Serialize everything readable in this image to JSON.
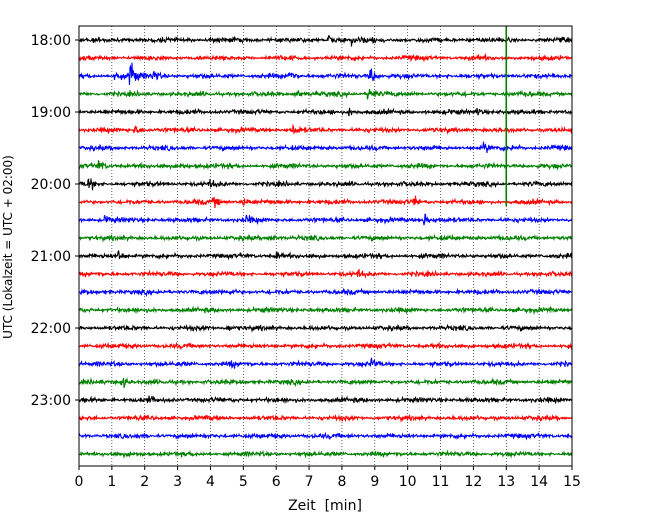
{
  "chart_data": {
    "type": "line",
    "title": "",
    "xlabel": "Zeit  [min]",
    "ylabel": "UTC (Lokalzeit = UTC + 02:00)",
    "xlim": [
      0,
      15
    ],
    "x_ticks": [
      "0",
      "1",
      "2",
      "3",
      "4",
      "5",
      "6",
      "7",
      "8",
      "9",
      "10",
      "11",
      "12",
      "13",
      "14",
      "15"
    ],
    "y_ticks": [
      {
        "label": "18:00",
        "minutes_utc": 1080
      },
      {
        "label": "19:00",
        "minutes_utc": 1140
      },
      {
        "label": "20:00",
        "minutes_utc": 1200
      },
      {
        "label": "21:00",
        "minutes_utc": 1260
      },
      {
        "label": "22:00",
        "minutes_utc": 1320
      },
      {
        "label": "23:00",
        "minutes_utc": 1380
      }
    ],
    "trace_interval_min": 15,
    "first_trace_utc": "18:00",
    "trace_count": 24,
    "trace_colors": [
      "#000000",
      "#ff0000",
      "#0000ff",
      "#008000"
    ],
    "grid": "vertical dotted at each minute",
    "events": [
      {
        "trace": 0,
        "x": 7.6,
        "amp": 0.45
      },
      {
        "trace": 0,
        "x": 8.3,
        "amp": 0.45
      },
      {
        "trace": 0,
        "x": 8.9,
        "amp": 0.3
      },
      {
        "trace": 2,
        "x": 1.1,
        "amp": 0.6
      },
      {
        "trace": 2,
        "x": 1.55,
        "amp": 2.0
      },
      {
        "trace": 2,
        "x": 2.25,
        "amp": 0.7
      },
      {
        "trace": 2,
        "x": 6.4,
        "amp": 0.7
      },
      {
        "trace": 2,
        "x": 8.85,
        "amp": 0.9
      },
      {
        "trace": 3,
        "x": 6.6,
        "amp": 0.5
      },
      {
        "trace": 3,
        "x": 8.8,
        "amp": 1.0
      },
      {
        "trace": 4,
        "x": 8.2,
        "amp": 0.45
      },
      {
        "trace": 4,
        "x": 12.1,
        "amp": 0.4
      },
      {
        "trace": 5,
        "x": 1.7,
        "amp": 0.45
      },
      {
        "trace": 5,
        "x": 6.5,
        "amp": 0.45
      },
      {
        "trace": 6,
        "x": 12.3,
        "amp": 0.5
      },
      {
        "trace": 6,
        "x": 13.2,
        "amp": 0.4
      },
      {
        "trace": 7,
        "x": 0.6,
        "amp": 0.5
      },
      {
        "trace": 7,
        "x": 3.1,
        "amp": 0.3
      },
      {
        "trace": 8,
        "x": 0.3,
        "amp": 0.7
      },
      {
        "trace": 8,
        "x": 4.0,
        "amp": 0.35
      },
      {
        "trace": 9,
        "x": 4.1,
        "amp": 0.45
      },
      {
        "trace": 9,
        "x": 5.0,
        "amp": 0.4
      },
      {
        "trace": 9,
        "x": 10.2,
        "amp": 0.45
      },
      {
        "trace": 10,
        "x": 0.8,
        "amp": 0.4
      },
      {
        "trace": 10,
        "x": 5.1,
        "amp": 0.4
      },
      {
        "trace": 10,
        "x": 10.5,
        "amp": 0.6
      },
      {
        "trace": 11,
        "x": 5.8,
        "amp": 0.4
      },
      {
        "trace": 12,
        "x": 1.2,
        "amp": 0.45
      },
      {
        "trace": 12,
        "x": 6.0,
        "amp": 0.3
      },
      {
        "trace": 13,
        "x": 8.5,
        "amp": 0.3
      },
      {
        "trace": 14,
        "x": 4.6,
        "amp": 0.35
      },
      {
        "trace": 16,
        "x": 4.5,
        "amp": 0.35
      },
      {
        "trace": 18,
        "x": 8.9,
        "amp": 0.45
      },
      {
        "trace": 18,
        "x": 4.6,
        "amp": 0.3
      },
      {
        "trace": 19,
        "x": 1.3,
        "amp": 0.6
      },
      {
        "trace": 20,
        "x": 2.1,
        "amp": 0.3
      }
    ],
    "spikes": [
      {
        "trace": 3,
        "x": 13.0,
        "from_trace": 0,
        "to_trace": 9
      }
    ]
  }
}
